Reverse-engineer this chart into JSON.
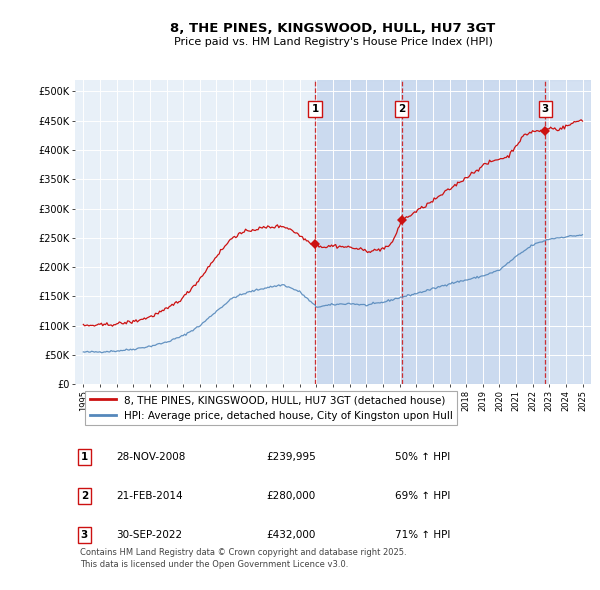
{
  "title": "8, THE PINES, KINGSWOOD, HULL, HU7 3GT",
  "subtitle": "Price paid vs. HM Land Registry's House Price Index (HPI)",
  "background_color": "#ffffff",
  "plot_bg_color": "#e8f0f8",
  "grid_color": "#ffffff",
  "ylim": [
    0,
    520000
  ],
  "yticks": [
    0,
    50000,
    100000,
    150000,
    200000,
    250000,
    300000,
    350000,
    400000,
    450000,
    500000
  ],
  "ytick_labels": [
    "£0",
    "£50K",
    "£100K",
    "£150K",
    "£200K",
    "£250K",
    "£300K",
    "£350K",
    "£400K",
    "£450K",
    "£500K"
  ],
  "hpi_color": "#5588bb",
  "price_color": "#cc1111",
  "vline_color": "#cc1111",
  "legend_label_price": "8, THE PINES, KINGSWOOD, HULL, HU7 3GT (detached house)",
  "legend_label_hpi": "HPI: Average price, detached house, City of Kingston upon Hull",
  "transactions": [
    {
      "n": 1,
      "date": "28-NOV-2008",
      "price": 239995,
      "hpi_pct": "50% ↑ HPI",
      "year_x": 2008.92
    },
    {
      "n": 2,
      "date": "21-FEB-2014",
      "price": 280000,
      "hpi_pct": "69% ↑ HPI",
      "year_x": 2014.13
    },
    {
      "n": 3,
      "date": "30-SEP-2022",
      "price": 432000,
      "hpi_pct": "71% ↑ HPI",
      "year_x": 2022.75
    }
  ],
  "footnote": "Contains HM Land Registry data © Crown copyright and database right 2025.\nThis data is licensed under the Open Government Licence v3.0.",
  "xlim": [
    1994.5,
    2025.5
  ],
  "xtick_start": 1995,
  "xtick_end": 2025
}
